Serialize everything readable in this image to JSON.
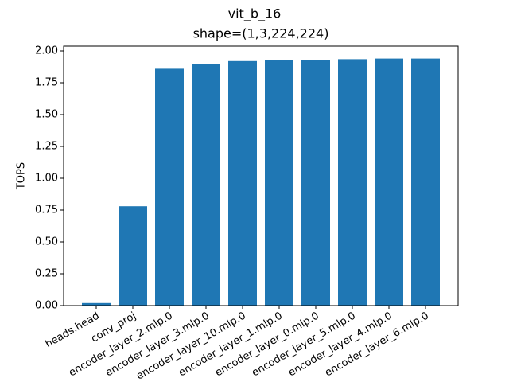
{
  "chart_data": {
    "type": "bar",
    "title": "vit_b_16",
    "subtitle": "shape=(1,3,224,224)",
    "y_label": "TOPS",
    "categories": [
      "heads.head",
      "conv_proj",
      "encoder_layer_2.mlp.0",
      "encoder_layer_3.mlp.0",
      "encoder_layer_10.mlp.0",
      "encoder_layer_1.mlp.0",
      "encoder_layer_0.mlp.0",
      "encoder_layer_5.mlp.0",
      "encoder_layer_4.mlp.0",
      "encoder_layer_6.mlp.0"
    ],
    "values": [
      0.02,
      0.78,
      1.86,
      1.9,
      1.92,
      1.925,
      1.925,
      1.935,
      1.94,
      1.94
    ],
    "color": "#1f77b4",
    "ylim": [
      0,
      2.0375
    ],
    "yticks": [
      {
        "value": 0,
        "label": "0.00"
      },
      {
        "value": 0.25,
        "label": "0.25"
      },
      {
        "value": 0.5,
        "label": "0.50"
      },
      {
        "value": 0.75,
        "label": "0.75"
      },
      {
        "value": 1,
        "label": "1.00"
      },
      {
        "value": 1.25,
        "label": "1.25"
      },
      {
        "value": 1.5,
        "label": "1.50"
      },
      {
        "value": 1.75,
        "label": "1.75"
      },
      {
        "value": 2,
        "label": "2.00"
      }
    ]
  }
}
